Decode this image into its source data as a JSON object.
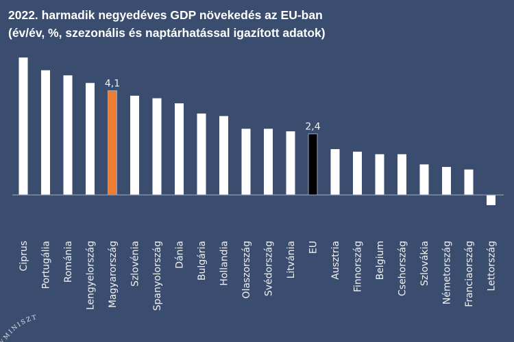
{
  "chart_data": {
    "type": "bar",
    "title": "2022. harmadik negyedéves GDP növekedés az EU-ban",
    "subtitle": "(év/év, %, szezonális és naptárhatással igazított adatok)",
    "categories": [
      "Ciprus",
      "Portugália",
      "Románia",
      "Lengyelország",
      "Magyarország",
      "Szlovénia",
      "Spanyolország",
      "Dánia",
      "Bulgária",
      "Hollandia",
      "Olaszország",
      "Svédország",
      "Litvánia",
      "EU",
      "Ausztria",
      "Finnország",
      "Belgium",
      "Csehország",
      "Szlovákia",
      "Németország",
      "Franciaország",
      "Lettország"
    ],
    "values": [
      5.4,
      4.9,
      4.7,
      4.4,
      4.1,
      3.9,
      3.8,
      3.6,
      3.2,
      3.1,
      2.6,
      2.6,
      2.5,
      2.4,
      1.8,
      1.7,
      1.6,
      1.6,
      1.2,
      1.1,
      1.0,
      -0.4
    ],
    "data_labels": {
      "Magyarország": "4,1",
      "EU": "2,4"
    },
    "highlight_colors": {
      "Magyarország": "#ed7d31",
      "EU": "#000000"
    },
    "default_color": "#ffffff",
    "background": "#3a4d6f",
    "ylim": [
      -0.5,
      5.5
    ],
    "grid": false,
    "legend": "none"
  },
  "logo_text": "GYMINISZT"
}
